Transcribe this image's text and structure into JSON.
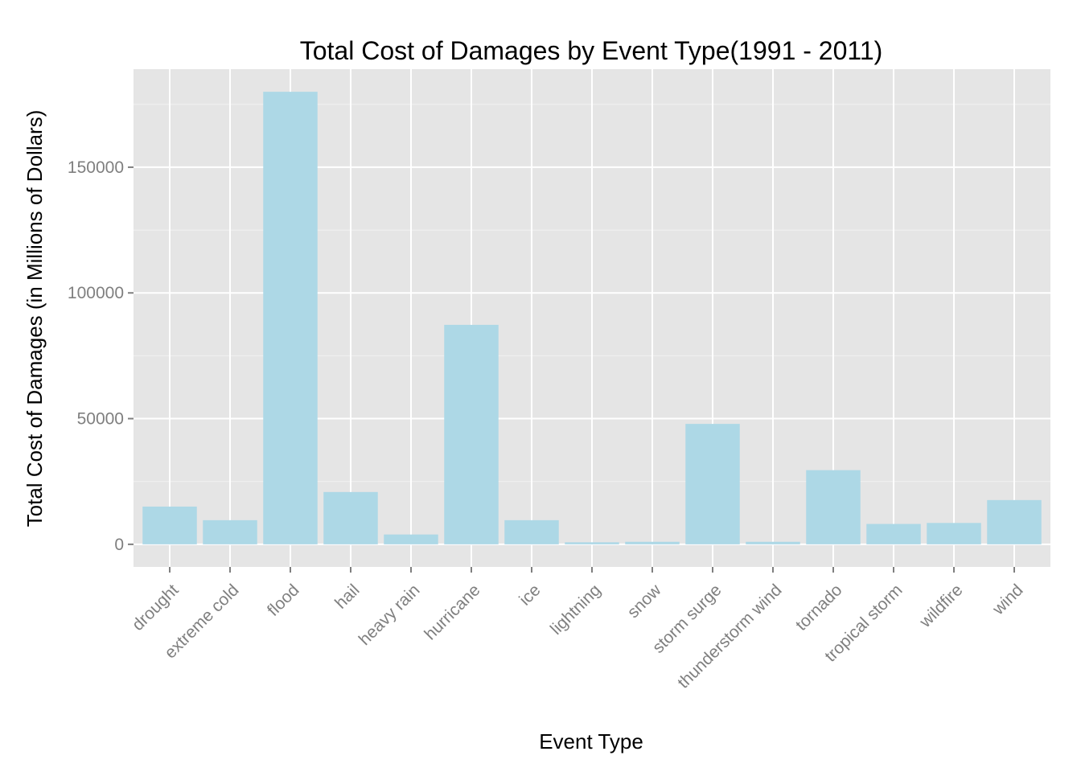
{
  "chart_data": {
    "type": "bar",
    "title": "Total Cost of Damages by Event Type(1991 - 2011)",
    "xlabel": "Event Type",
    "ylabel": "Total Cost of Damages (in Millions of Dollars)",
    "categories": [
      "drought",
      "extreme cold",
      "flood",
      "hail",
      "heavy rain",
      "hurricane",
      "ice",
      "lightning",
      "snow",
      "storm surge",
      "thunderstorm wind",
      "tornado",
      "tropical storm",
      "wildfire",
      "wind"
    ],
    "values": [
      15000,
      9600,
      180000,
      20800,
      3900,
      87300,
      9600,
      800,
      1000,
      47900,
      1000,
      29500,
      8100,
      8500,
      17600
    ],
    "ylim": [
      -9000,
      189000
    ],
    "yticks": [
      0,
      50000,
      100000,
      150000
    ],
    "ytick_labels": [
      "0",
      "50000",
      "100000",
      "150000"
    ],
    "grid": true,
    "colors": {
      "bar": "#add8e6",
      "panel": "#e5e5e5",
      "grid_major": "#ffffff",
      "grid_minor": "#f2f2f2",
      "tick_text": "#7f7f7f"
    }
  }
}
